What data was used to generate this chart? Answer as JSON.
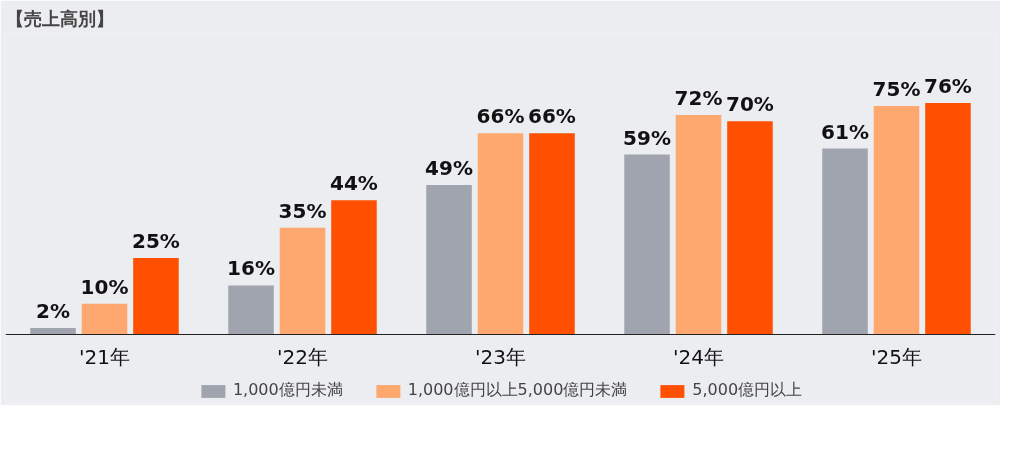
{
  "chart_data": {
    "type": "bar",
    "title": "【売上高別】",
    "categories": [
      "'21年",
      "'22年",
      "'23年",
      "'24年",
      "'25年"
    ],
    "series": [
      {
        "name": "1,000億円未満",
        "color": "#a0a4ae",
        "values": [
          2,
          16,
          49,
          59,
          61
        ],
        "value_labels": [
          "2%",
          "16%",
          "49%",
          "59%",
          "61%"
        ]
      },
      {
        "name": "1,000億円以上5,000億円未満",
        "color": "#fea76e",
        "values": [
          10,
          35,
          66,
          72,
          75
        ],
        "value_labels": [
          "10%",
          "35%",
          "66%",
          "72%",
          "75%"
        ]
      },
      {
        "name": "5,000億円以上",
        "color": "#fe5000",
        "values": [
          25,
          44,
          66,
          70,
          76
        ],
        "value_labels": [
          "25%",
          "44%",
          "66%",
          "70%",
          "76%"
        ]
      }
    ],
    "legend": "bottom"
  }
}
